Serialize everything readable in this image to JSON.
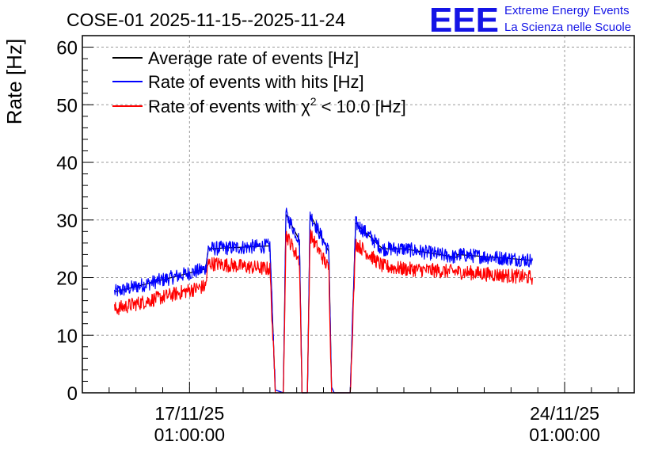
{
  "chart_data": {
    "type": "line",
    "title": "COSE-01 2025-11-15--2025-11-24",
    "xlabel": "",
    "ylabel": "Rate [Hz]",
    "ylim": [
      0,
      62
    ],
    "yticks": [
      0,
      10,
      20,
      30,
      40,
      50,
      60
    ],
    "xlim_days": [
      0,
      10.3
    ],
    "xticks": [
      {
        "day": 2.0,
        "date": "17/11/25",
        "time": "01:00:00"
      },
      {
        "day": 9.0,
        "date": "24/11/25",
        "time": "01:00:00"
      }
    ],
    "grid": true,
    "legend_position": "top-left",
    "logo": {
      "mark": "EEE",
      "line1": "Extreme Energy Events",
      "line2": "La Scienza nelle Scuole"
    },
    "series": [
      {
        "name": "Average rate of events [Hz]",
        "color": "#000000",
        "x_days": [
          0.6,
          2.3,
          2.35,
          3.5,
          3.6,
          3.75,
          3.8,
          4.05,
          4.1,
          4.2,
          4.25,
          4.6,
          4.65,
          4.7,
          5.0,
          5.1,
          5.6,
          6.0,
          7.0,
          7.0,
          8.4
        ],
        "values": [
          17.5,
          21.5,
          25.0,
          25.5,
          0.5,
          0.0,
          31.0,
          26.5,
          0.0,
          0.0,
          31.0,
          24.5,
          1.0,
          0.0,
          0.0,
          29.5,
          25.0,
          25.0,
          23.5,
          24.0,
          23.0
        ]
      },
      {
        "name": "Rate of events with hits [Hz]",
        "color": "#0000ff",
        "noise": 0.9,
        "x_days": [
          0.6,
          2.3,
          2.35,
          3.5,
          3.6,
          3.75,
          3.8,
          4.05,
          4.1,
          4.2,
          4.25,
          4.6,
          4.65,
          4.7,
          5.0,
          5.1,
          5.6,
          6.0,
          7.0,
          7.0,
          8.4
        ],
        "values": [
          17.5,
          21.5,
          25.0,
          25.5,
          0.5,
          0.0,
          31.0,
          26.5,
          0.0,
          0.0,
          31.0,
          24.5,
          1.0,
          0.0,
          0.0,
          29.5,
          25.0,
          25.0,
          23.5,
          24.0,
          23.0
        ]
      },
      {
        "name": "Rate of events with χ² < 10.0 [Hz]",
        "legend_main": "Rate of events with χ",
        "legend_sup": "2",
        "legend_tail": " < 10.0 [Hz]",
        "color": "#ff0000",
        "noise": 0.9,
        "x_days": [
          0.6,
          2.3,
          2.35,
          3.5,
          3.6,
          3.75,
          3.8,
          4.05,
          4.1,
          4.2,
          4.25,
          4.6,
          4.65,
          4.7,
          5.0,
          5.1,
          5.6,
          6.0,
          7.0,
          7.0,
          8.4
        ],
        "values": [
          14.5,
          18.5,
          22.5,
          21.5,
          0.0,
          0.0,
          27.5,
          23.0,
          0.0,
          0.0,
          27.5,
          21.5,
          0.0,
          0.0,
          0.0,
          26.0,
          22.0,
          21.5,
          21.0,
          21.0,
          20.0
        ]
      }
    ]
  }
}
